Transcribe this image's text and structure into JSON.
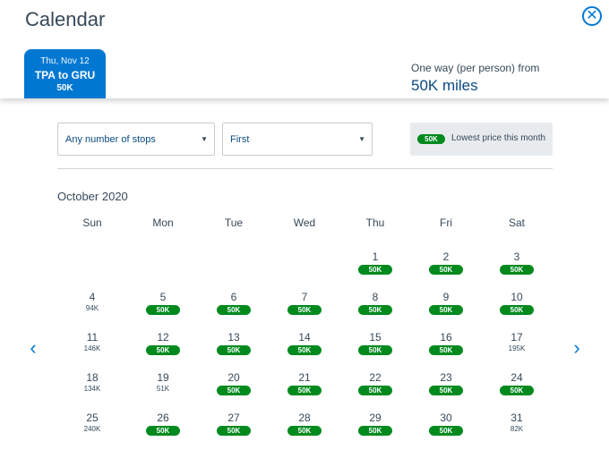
{
  "title": "Calendar",
  "close": {
    "icon": "close-icon",
    "glyph": "✕"
  },
  "date_tab": {
    "date": "Thu, Nov 12",
    "route": "TPA to GRU",
    "price": "50K"
  },
  "fare": {
    "label": "One way (per person) from",
    "value": "50K miles"
  },
  "filters": {
    "stops": {
      "value": "Any number of stops"
    },
    "cabin": {
      "value": "First"
    }
  },
  "legend": {
    "pill": "50K",
    "text": "Lowest price this month"
  },
  "month": "October 2020",
  "weekdays": [
    "Sun",
    "Mon",
    "Tue",
    "Wed",
    "Thu",
    "Fri",
    "Sat"
  ],
  "days": [
    {
      "day": "1",
      "price": "50K",
      "lowest": true
    },
    {
      "day": "2",
      "price": "50K",
      "lowest": true
    },
    {
      "day": "3",
      "price": "50K",
      "lowest": true
    },
    {
      "day": "4",
      "price": "94K",
      "lowest": false
    },
    {
      "day": "5",
      "price": "50K",
      "lowest": true
    },
    {
      "day": "6",
      "price": "50K",
      "lowest": true
    },
    {
      "day": "7",
      "price": "50K",
      "lowest": true
    },
    {
      "day": "8",
      "price": "50K",
      "lowest": true
    },
    {
      "day": "9",
      "price": "50K",
      "lowest": true
    },
    {
      "day": "10",
      "price": "50K",
      "lowest": true
    },
    {
      "day": "11",
      "price": "146K",
      "lowest": false
    },
    {
      "day": "12",
      "price": "50K",
      "lowest": true
    },
    {
      "day": "13",
      "price": "50K",
      "lowest": true
    },
    {
      "day": "14",
      "price": "50K",
      "lowest": true
    },
    {
      "day": "15",
      "price": "50K",
      "lowest": true
    },
    {
      "day": "16",
      "price": "50K",
      "lowest": true
    },
    {
      "day": "17",
      "price": "195K",
      "lowest": false
    },
    {
      "day": "18",
      "price": "134K",
      "lowest": false
    },
    {
      "day": "19",
      "price": "51K",
      "lowest": false
    },
    {
      "day": "20",
      "price": "50K",
      "lowest": true
    },
    {
      "day": "21",
      "price": "50K",
      "lowest": true
    },
    {
      "day": "22",
      "price": "50K",
      "lowest": true
    },
    {
      "day": "23",
      "price": "50K",
      "lowest": true
    },
    {
      "day": "24",
      "price": "50K",
      "lowest": true
    },
    {
      "day": "25",
      "price": "240K",
      "lowest": false
    },
    {
      "day": "26",
      "price": "50K",
      "lowest": true
    },
    {
      "day": "27",
      "price": "50K",
      "lowest": true
    },
    {
      "day": "28",
      "price": "50K",
      "lowest": true
    },
    {
      "day": "29",
      "price": "50K",
      "lowest": true
    },
    {
      "day": "30",
      "price": "50K",
      "lowest": true
    },
    {
      "day": "31",
      "price": "82K",
      "lowest": false
    }
  ],
  "nav": {
    "prev_glyph": "‹",
    "next_glyph": "›"
  },
  "colors": {
    "accent": "#0078d2",
    "lowest": "#008a1e"
  }
}
